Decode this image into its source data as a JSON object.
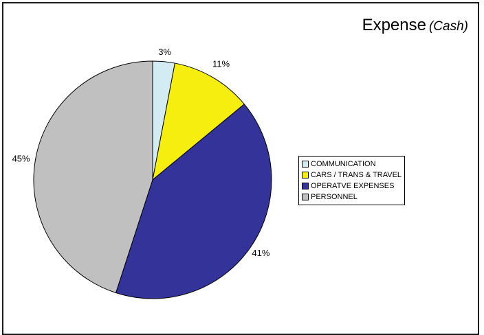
{
  "title": "Expense",
  "subtitle": "(Cash)",
  "chart_data": {
    "type": "pie",
    "title": "Expense (Cash)",
    "categories": [
      "COMMUNICATION",
      "CARS / TRANS & TRAVEL",
      "OPERATVE EXPENSES",
      "PERSONNEL"
    ],
    "values": [
      3,
      11,
      41,
      45
    ],
    "labels": [
      "3%",
      "11%",
      "41%",
      "45%"
    ],
    "colors": [
      "#D3ECF4",
      "#F5EE0F",
      "#333399",
      "#C0C0C0"
    ],
    "legend_position": "right"
  }
}
